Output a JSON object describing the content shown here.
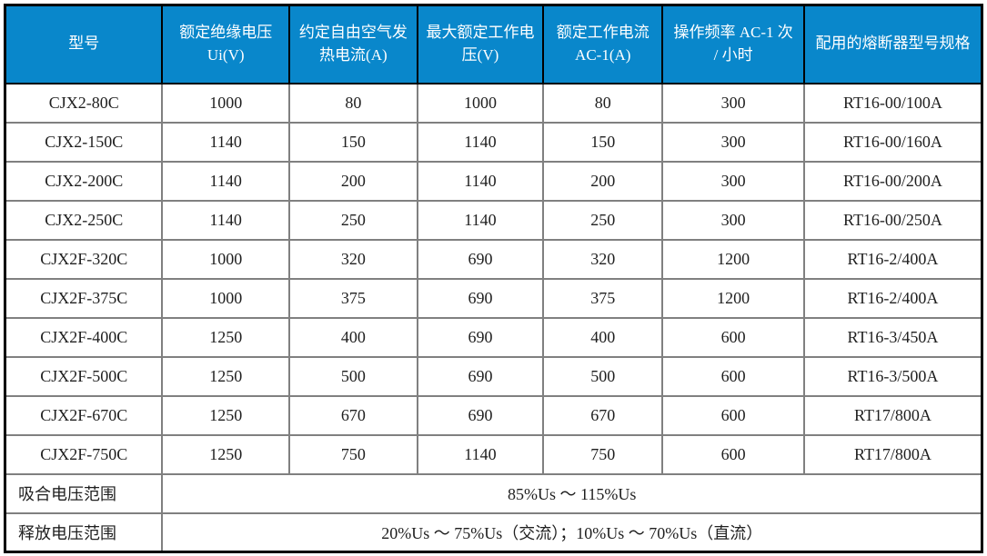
{
  "chart_data": {
    "type": "table",
    "title": "",
    "columns": [
      "型号",
      "额定绝缘电压 Ui(V)",
      "约定自由空气发热电流(A)",
      "最大额定工作电压(V)",
      "额定工作电流 AC-1(A)",
      "操作频率 AC-1 次 / 小时",
      "配用的熔断器型号规格"
    ],
    "rows": [
      [
        "CJX2-80C",
        "1000",
        "80",
        "1000",
        "80",
        "300",
        "RT16-00/100A"
      ],
      [
        "CJX2-150C",
        "1140",
        "150",
        "1140",
        "150",
        "300",
        "RT16-00/160A"
      ],
      [
        "CJX2-200C",
        "1140",
        "200",
        "1140",
        "200",
        "300",
        "RT16-00/200A"
      ],
      [
        "CJX2-250C",
        "1140",
        "250",
        "1140",
        "250",
        "300",
        "RT16-00/250A"
      ],
      [
        "CJX2F-320C",
        "1000",
        "320",
        "690",
        "320",
        "1200",
        "RT16-2/400A"
      ],
      [
        "CJX2F-375C",
        "1000",
        "375",
        "690",
        "375",
        "1200",
        "RT16-2/400A"
      ],
      [
        "CJX2F-400C",
        "1250",
        "400",
        "690",
        "400",
        "600",
        "RT16-3/450A"
      ],
      [
        "CJX2F-500C",
        "1250",
        "500",
        "690",
        "500",
        "600",
        "RT16-3/500A"
      ],
      [
        "CJX2F-670C",
        "1250",
        "670",
        "690",
        "670",
        "600",
        "RT17/800A"
      ],
      [
        "CJX2F-750C",
        "1250",
        "750",
        "1140",
        "750",
        "600",
        "RT17/800A"
      ]
    ],
    "footer_rows": [
      {
        "label": "吸合电压范围",
        "value": "85%Us ～ 115%Us"
      },
      {
        "label": "释放电压范围",
        "value": "20%Us ～ 75%Us（交流）；10%Us ～ 70%Us（直流）"
      }
    ],
    "layout_hints": {
      "header_style": "blue background, white text",
      "footer_value_colspan": 6,
      "grid": "on"
    }
  },
  "colors": {
    "header_bg": "#0987CB",
    "header_text": "#FFFFFF",
    "grid_line": "#808080",
    "outer_border": "#000000",
    "body_text": "#1F1F1F"
  }
}
